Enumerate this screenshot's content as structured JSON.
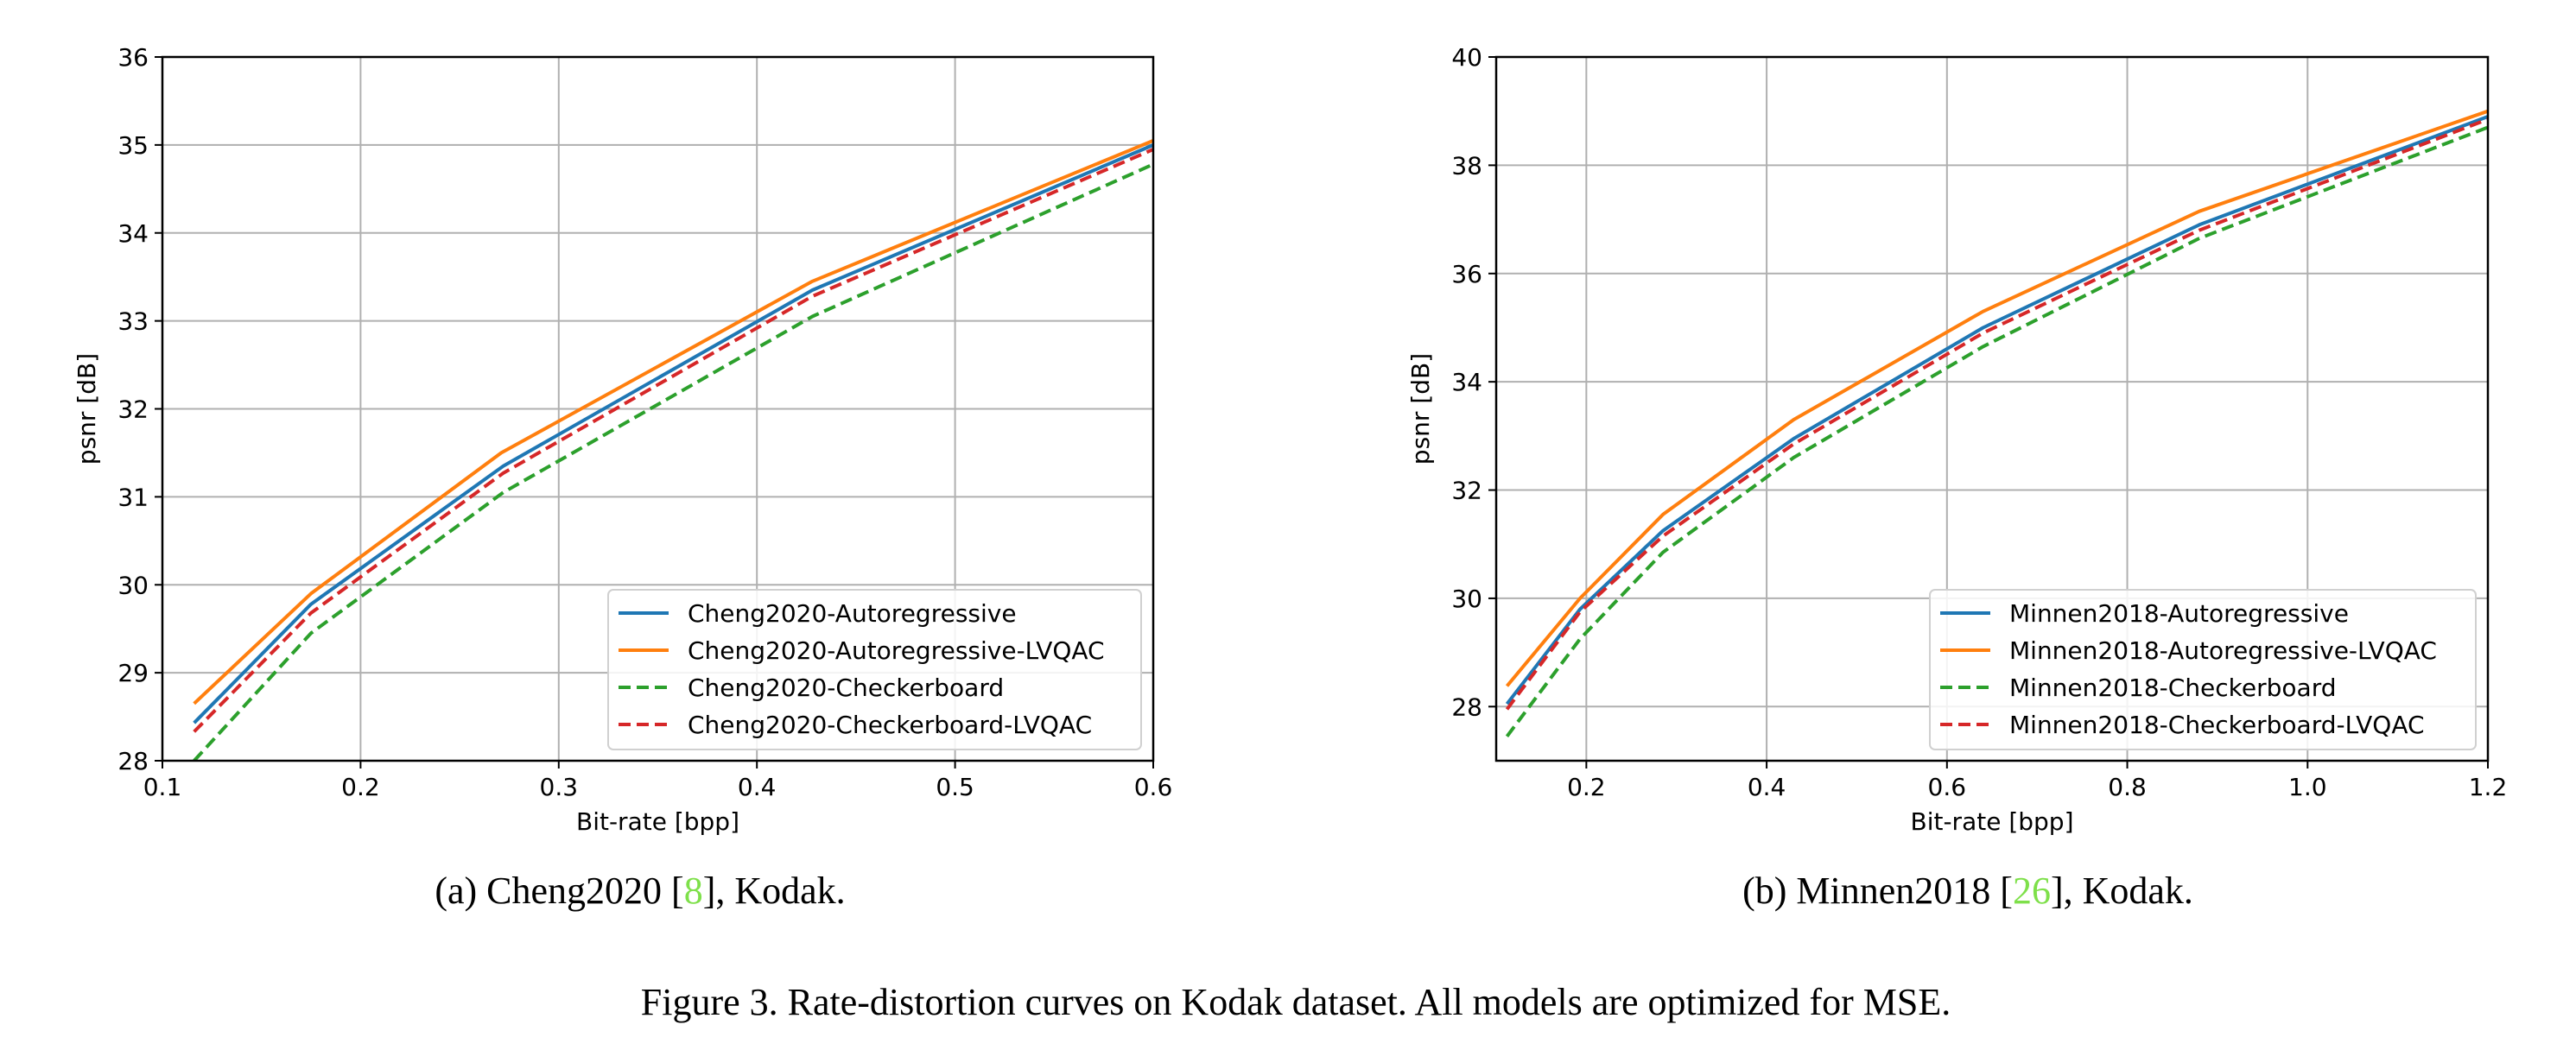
{
  "figure_caption": "Figure 3. Rate-distortion curves on Kodak dataset. All models are optimized for MSE.",
  "link_color": "#7ee04a",
  "chart_data": [
    {
      "type": "line",
      "caption": {
        "before": "(a) Cheng2020 [",
        "ref": "8",
        "after": "], Kodak."
      },
      "xlabel": "Bit-rate [bpp]",
      "ylabel": "psnr [dB]",
      "xlim": [
        0.1,
        0.6
      ],
      "ylim": [
        28,
        36
      ],
      "xticks": [
        0.1,
        0.2,
        0.3,
        0.4,
        0.5,
        0.6
      ],
      "xtick_labels": [
        "0.1",
        "0.2",
        "0.3",
        "0.4",
        "0.5",
        "0.6"
      ],
      "yticks": [
        28,
        29,
        30,
        31,
        32,
        33,
        34,
        35,
        36
      ],
      "ytick_labels": [
        "28",
        "29",
        "30",
        "31",
        "32",
        "33",
        "34",
        "35",
        "36"
      ],
      "grid": true,
      "legend_position": "lower-right",
      "series": [
        {
          "name": "Cheng2020-Autoregressive",
          "color": "#1f77b4",
          "style": "solid",
          "x": [
            0.116,
            0.175,
            0.272,
            0.428,
            0.6
          ],
          "y": [
            28.43,
            29.78,
            31.35,
            33.35,
            35.0
          ]
        },
        {
          "name": "Cheng2020-Autoregressive-LVQAC",
          "color": "#ff7f0e",
          "style": "solid",
          "x": [
            0.116,
            0.175,
            0.271,
            0.428,
            0.6
          ],
          "y": [
            28.65,
            29.9,
            31.5,
            33.45,
            35.05
          ]
        },
        {
          "name": "Cheng2020-Checkerboard",
          "color": "#2ca02c",
          "style": "dashed",
          "x": [
            0.116,
            0.175,
            0.272,
            0.428,
            0.6
          ],
          "y": [
            28.0,
            29.45,
            31.05,
            33.05,
            34.78
          ]
        },
        {
          "name": "Cheng2020-Checkerboard-LVQAC",
          "color": "#d62728",
          "style": "dashed",
          "x": [
            0.116,
            0.175,
            0.272,
            0.428,
            0.6
          ],
          "y": [
            28.33,
            29.68,
            31.27,
            33.28,
            34.95
          ]
        }
      ]
    },
    {
      "type": "line",
      "caption": {
        "before": "(b) Minnen2018 [",
        "ref": "26",
        "after": "], Kodak."
      },
      "xlabel": "Bit-rate [bpp]",
      "ylabel": "psnr [dB]",
      "xlim": [
        0.1,
        1.2
      ],
      "ylim": [
        27.0,
        40.0
      ],
      "xticks": [
        0.2,
        0.4,
        0.6,
        0.8,
        1.0,
        1.2
      ],
      "xtick_labels": [
        "0.2",
        "0.4",
        "0.6",
        "0.8",
        "1.0",
        "1.2"
      ],
      "yticks": [
        28,
        30,
        32,
        34,
        36,
        38,
        40
      ],
      "ytick_labels": [
        "28",
        "30",
        "32",
        "34",
        "36",
        "38",
        "40"
      ],
      "grid": true,
      "legend_position": "lower-right",
      "series": [
        {
          "name": "Minnen2018-Autoregressive",
          "color": "#1f77b4",
          "style": "solid",
          "x": [
            0.112,
            0.193,
            0.285,
            0.43,
            0.64,
            0.88,
            1.2
          ],
          "y": [
            28.05,
            29.8,
            31.25,
            32.95,
            35.0,
            36.9,
            38.9
          ]
        },
        {
          "name": "Minnen2018-Autoregressive-LVQAC",
          "color": "#ff7f0e",
          "style": "solid",
          "x": [
            0.112,
            0.193,
            0.285,
            0.43,
            0.64,
            0.88,
            1.2
          ],
          "y": [
            28.38,
            30.0,
            31.55,
            33.3,
            35.3,
            37.15,
            39.0
          ]
        },
        {
          "name": "Minnen2018-Checkerboard",
          "color": "#2ca02c",
          "style": "dashed",
          "x": [
            0.112,
            0.193,
            0.285,
            0.43,
            0.64,
            0.88,
            1.2
          ],
          "y": [
            27.45,
            29.25,
            30.85,
            32.6,
            34.65,
            36.65,
            38.7
          ]
        },
        {
          "name": "Minnen2018-Checkerboard-LVQAC",
          "color": "#d62728",
          "style": "dashed",
          "x": [
            0.112,
            0.193,
            0.285,
            0.43,
            0.64,
            0.88,
            1.2
          ],
          "y": [
            27.95,
            29.75,
            31.15,
            32.85,
            34.9,
            36.8,
            38.85
          ]
        }
      ]
    }
  ]
}
